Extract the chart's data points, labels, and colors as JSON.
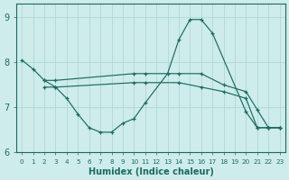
{
  "xlabel": "Humidex (Indice chaleur)",
  "background_color": "#ceecea",
  "grid_color": "#aad4d0",
  "line_color": "#1a6b60",
  "xlim": [
    -0.5,
    23.5
  ],
  "ylim": [
    6,
    9.3
  ],
  "yticks": [
    6,
    7,
    8,
    9
  ],
  "xticks": [
    0,
    1,
    2,
    3,
    4,
    5,
    6,
    7,
    8,
    9,
    10,
    11,
    12,
    13,
    14,
    15,
    16,
    17,
    18,
    19,
    20,
    21,
    22,
    23
  ],
  "lines": [
    {
      "x": [
        0,
        1,
        2,
        3,
        4,
        5,
        6,
        7,
        8,
        9,
        10,
        11,
        13,
        14,
        15,
        16,
        17,
        20,
        21,
        22,
        23
      ],
      "y": [
        8.05,
        7.85,
        7.6,
        7.45,
        7.2,
        6.85,
        6.55,
        6.45,
        6.45,
        6.65,
        6.75,
        7.1,
        7.75,
        8.5,
        8.95,
        8.95,
        8.65,
        6.9,
        6.55,
        6.55,
        6.55
      ]
    },
    {
      "x": [
        2,
        3,
        10,
        11,
        14,
        16,
        18,
        20,
        21,
        22,
        23
      ],
      "y": [
        7.6,
        7.6,
        7.75,
        7.75,
        7.75,
        7.75,
        7.5,
        7.35,
        6.95,
        6.55,
        6.55
      ]
    },
    {
      "x": [
        2,
        3,
        10,
        11,
        14,
        16,
        18,
        20,
        21,
        22,
        23
      ],
      "y": [
        7.45,
        7.45,
        7.55,
        7.55,
        7.55,
        7.45,
        7.35,
        7.2,
        6.55,
        6.55,
        6.55
      ]
    }
  ]
}
